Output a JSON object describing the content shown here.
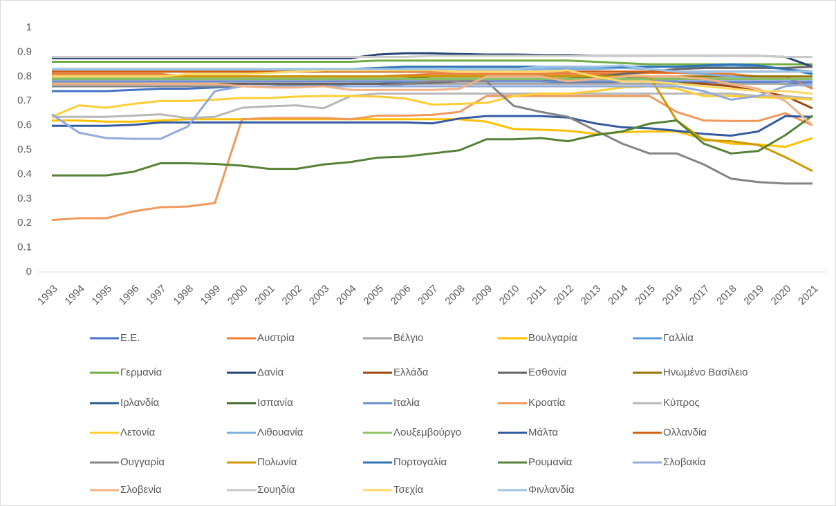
{
  "chart_data": {
    "type": "line",
    "categories": [
      "1993",
      "1994",
      "1995",
      "1996",
      "1997",
      "1998",
      "1999",
      "2000",
      "2001",
      "2002",
      "2003",
      "2004",
      "2005",
      "2006",
      "2007",
      "2008",
      "2009",
      "2010",
      "2011",
      "2012",
      "2013",
      "2014",
      "2015",
      "2016",
      "2017",
      "2018",
      "2019",
      "2020",
      "2021"
    ],
    "ylim": [
      0,
      1
    ],
    "yticks": [
      0,
      0.1,
      0.2,
      0.3,
      0.4,
      0.5,
      0.6,
      0.7,
      0.8,
      0.9,
      1
    ],
    "grid": false,
    "legend": "bottom",
    "series": [
      {
        "name": "Ε.Ε.",
        "color": "#4472C4",
        "values": [
          0.74,
          0.74,
          0.74,
          0.745,
          0.75,
          0.75,
          0.755,
          0.76,
          0.76,
          0.765,
          0.765,
          0.77,
          0.77,
          0.775,
          0.78,
          0.78,
          0.78,
          0.78,
          0.78,
          0.775,
          0.775,
          0.78,
          0.78,
          0.78,
          0.775,
          0.775,
          0.775,
          0.77,
          0.775
        ]
      },
      {
        "name": "Αυστρία",
        "color": "#ED7D31",
        "values": [
          0.81,
          0.81,
          0.81,
          0.81,
          0.81,
          0.8,
          0.8,
          0.8,
          0.8,
          0.8,
          0.8,
          0.8,
          0.8,
          0.805,
          0.81,
          0.81,
          0.81,
          0.81,
          0.81,
          0.81,
          0.81,
          0.81,
          0.815,
          0.815,
          0.81,
          0.81,
          0.8,
          0.8,
          0.75
        ]
      },
      {
        "name": "Βέλγιο",
        "color": "#A5A5A5",
        "values": [
          0.77,
          0.77,
          0.77,
          0.77,
          0.77,
          0.77,
          0.77,
          0.77,
          0.77,
          0.77,
          0.77,
          0.77,
          0.77,
          0.77,
          0.77,
          0.77,
          0.77,
          0.77,
          0.77,
          0.77,
          0.77,
          0.77,
          0.77,
          0.77,
          0.77,
          0.77,
          0.77,
          0.77,
          0.76
        ]
      },
      {
        "name": "Βουλγαρία",
        "color": "#FFC000",
        "values": [
          0.62,
          0.62,
          0.615,
          0.615,
          0.62,
          0.625,
          0.625,
          0.625,
          0.625,
          0.625,
          0.625,
          0.625,
          0.625,
          0.625,
          0.625,
          0.625,
          0.615,
          0.585,
          0.582,
          0.578,
          0.565,
          0.572,
          0.575,
          0.575,
          0.545,
          0.525,
          0.522,
          0.512,
          0.548
        ]
      },
      {
        "name": "Γαλλία",
        "color": "#5B9BD5",
        "values": [
          0.82,
          0.82,
          0.82,
          0.82,
          0.82,
          0.82,
          0.82,
          0.82,
          0.82,
          0.82,
          0.82,
          0.825,
          0.83,
          0.83,
          0.83,
          0.83,
          0.83,
          0.83,
          0.83,
          0.835,
          0.835,
          0.84,
          0.84,
          0.84,
          0.84,
          0.845,
          0.84,
          0.83,
          0.82
        ]
      },
      {
        "name": "Γερμανία",
        "color": "#70AD47",
        "values": [
          0.86,
          0.86,
          0.86,
          0.86,
          0.86,
          0.86,
          0.86,
          0.86,
          0.86,
          0.86,
          0.86,
          0.86,
          0.865,
          0.865,
          0.865,
          0.865,
          0.865,
          0.865,
          0.865,
          0.865,
          0.86,
          0.855,
          0.85,
          0.85,
          0.85,
          0.85,
          0.85,
          0.85,
          0.85
        ]
      },
      {
        "name": "Δανία",
        "color": "#264478",
        "values": [
          0.875,
          0.875,
          0.875,
          0.875,
          0.875,
          0.875,
          0.875,
          0.875,
          0.875,
          0.875,
          0.875,
          0.875,
          0.89,
          0.895,
          0.895,
          0.892,
          0.89,
          0.89,
          0.888,
          0.888,
          0.885,
          0.885,
          0.885,
          0.885,
          0.885,
          0.885,
          0.885,
          0.88,
          0.84
        ]
      },
      {
        "name": "Ελλάδα",
        "color": "#9E480E",
        "values": [
          0.78,
          0.78,
          0.78,
          0.78,
          0.78,
          0.78,
          0.78,
          0.78,
          0.78,
          0.78,
          0.78,
          0.78,
          0.78,
          0.78,
          0.78,
          0.78,
          0.78,
          0.78,
          0.78,
          0.78,
          0.78,
          0.78,
          0.78,
          0.78,
          0.77,
          0.76,
          0.74,
          0.72,
          0.67
        ]
      },
      {
        "name": "Εσθονία",
        "color": "#636363",
        "values": [
          0.77,
          0.77,
          0.77,
          0.77,
          0.77,
          0.77,
          0.77,
          0.77,
          0.77,
          0.77,
          0.77,
          0.77,
          0.77,
          0.77,
          0.775,
          0.78,
          0.78,
          0.78,
          0.78,
          0.79,
          0.8,
          0.81,
          0.82,
          0.83,
          0.835,
          0.835,
          0.835,
          0.835,
          0.84
        ]
      },
      {
        "name": "Ηνωμένο Βασίλειο",
        "color": "#997300",
        "values": [
          0.8,
          0.8,
          0.8,
          0.8,
          0.8,
          0.8,
          0.8,
          0.8,
          0.8,
          0.8,
          0.8,
          0.8,
          0.8,
          0.8,
          0.8,
          0.8,
          0.8,
          0.8,
          0.8,
          0.8,
          0.8,
          0.8,
          0.8,
          0.8,
          0.8,
          0.8,
          0.8,
          0.8,
          0.8
        ]
      },
      {
        "name": "Ιρλανδία",
        "color": "#255E91",
        "values": [
          0.79,
          0.79,
          0.79,
          0.79,
          0.79,
          0.79,
          0.79,
          0.79,
          0.79,
          0.79,
          0.79,
          0.79,
          0.79,
          0.79,
          0.79,
          0.79,
          0.79,
          0.79,
          0.79,
          0.79,
          0.79,
          0.79,
          0.79,
          0.79,
          0.79,
          0.79,
          0.79,
          0.79,
          0.79
        ]
      },
      {
        "name": "Ισπανία",
        "color": "#43682B",
        "values": [
          0.79,
          0.79,
          0.79,
          0.79,
          0.79,
          0.79,
          0.79,
          0.79,
          0.79,
          0.79,
          0.79,
          0.79,
          0.79,
          0.79,
          0.8,
          0.8,
          0.8,
          0.8,
          0.8,
          0.8,
          0.8,
          0.8,
          0.79,
          0.79,
          0.79,
          0.79,
          0.79,
          0.79,
          0.79
        ]
      },
      {
        "name": "Ιταλία",
        "color": "#698ED0",
        "values": [
          0.78,
          0.78,
          0.78,
          0.78,
          0.78,
          0.78,
          0.78,
          0.78,
          0.78,
          0.78,
          0.78,
          0.78,
          0.78,
          0.78,
          0.78,
          0.78,
          0.78,
          0.78,
          0.78,
          0.78,
          0.78,
          0.78,
          0.78,
          0.78,
          0.78,
          0.78,
          0.78,
          0.78,
          0.78
        ]
      },
      {
        "name": "Κροατία",
        "color": "#F1975A",
        "values": [
          0.213,
          0.22,
          0.22,
          0.248,
          0.265,
          0.268,
          0.282,
          0.625,
          0.63,
          0.63,
          0.63,
          0.625,
          0.64,
          0.64,
          0.643,
          0.655,
          0.72,
          0.72,
          0.72,
          0.72,
          0.72,
          0.72,
          0.72,
          0.655,
          0.62,
          0.618,
          0.618,
          0.65,
          0.6
        ]
      },
      {
        "name": "Κύπρος",
        "color": "#B7B7B7",
        "values": [
          0.635,
          0.635,
          0.635,
          0.64,
          0.645,
          0.63,
          0.635,
          0.672,
          0.678,
          0.682,
          0.67,
          0.72,
          0.73,
          0.73,
          0.73,
          0.73,
          0.73,
          0.73,
          0.73,
          0.73,
          0.73,
          0.73,
          0.73,
          0.73,
          0.73,
          0.73,
          0.72,
          0.72,
          0.71
        ]
      },
      {
        "name": "Λετονία",
        "color": "#FFCD33",
        "values": [
          0.635,
          0.682,
          0.672,
          0.688,
          0.7,
          0.7,
          0.705,
          0.712,
          0.712,
          0.718,
          0.72,
          0.72,
          0.718,
          0.71,
          0.685,
          0.688,
          0.692,
          0.72,
          0.73,
          0.73,
          0.74,
          0.755,
          0.76,
          0.75,
          0.72,
          0.72,
          0.715,
          0.712,
          0.705
        ]
      },
      {
        "name": "Λιθουανία",
        "color": "#7CAFDD",
        "values": [
          0.83,
          0.83,
          0.83,
          0.83,
          0.83,
          0.83,
          0.83,
          0.83,
          0.83,
          0.83,
          0.83,
          0.83,
          0.83,
          0.83,
          0.83,
          0.83,
          0.83,
          0.83,
          0.83,
          0.83,
          0.83,
          0.835,
          0.83,
          0.82,
          0.81,
          0.8,
          0.79,
          0.79,
          0.79
        ]
      },
      {
        "name": "Λουξεμβούργο",
        "color": "#8CC168",
        "values": [
          0.79,
          0.79,
          0.79,
          0.79,
          0.79,
          0.79,
          0.79,
          0.79,
          0.79,
          0.79,
          0.79,
          0.79,
          0.79,
          0.79,
          0.79,
          0.79,
          0.79,
          0.79,
          0.79,
          0.79,
          0.79,
          0.79,
          0.79,
          0.79,
          0.79,
          0.79,
          0.79,
          0.79,
          0.79
        ]
      },
      {
        "name": "Μάλτα",
        "color": "#335AA1",
        "values": [
          0.598,
          0.598,
          0.598,
          0.602,
          0.612,
          0.612,
          0.612,
          0.612,
          0.612,
          0.612,
          0.612,
          0.612,
          0.612,
          0.612,
          0.608,
          0.628,
          0.638,
          0.638,
          0.638,
          0.632,
          0.608,
          0.592,
          0.588,
          0.578,
          0.565,
          0.558,
          0.575,
          0.638,
          0.635
        ]
      },
      {
        "name": "Ολλανδία",
        "color": "#D26012",
        "values": [
          0.82,
          0.82,
          0.82,
          0.82,
          0.82,
          0.82,
          0.82,
          0.82,
          0.82,
          0.82,
          0.82,
          0.82,
          0.82,
          0.82,
          0.82,
          0.82,
          0.82,
          0.82,
          0.82,
          0.82,
          0.82,
          0.82,
          0.82,
          0.82,
          0.82,
          0.82,
          0.82,
          0.82,
          0.82
        ]
      },
      {
        "name": "Ουγγαρία",
        "color": "#848484",
        "values": [
          0.76,
          0.76,
          0.76,
          0.76,
          0.76,
          0.76,
          0.76,
          0.76,
          0.76,
          0.76,
          0.76,
          0.76,
          0.76,
          0.77,
          0.78,
          0.78,
          0.78,
          0.68,
          0.655,
          0.635,
          0.58,
          0.525,
          0.485,
          0.485,
          0.44,
          0.382,
          0.368,
          0.362,
          0.362
        ]
      },
      {
        "name": "Πολωνία",
        "color": "#CC9A00",
        "values": [
          0.8,
          0.8,
          0.8,
          0.8,
          0.8,
          0.8,
          0.8,
          0.8,
          0.8,
          0.8,
          0.8,
          0.8,
          0.8,
          0.8,
          0.8,
          0.8,
          0.8,
          0.8,
          0.8,
          0.8,
          0.8,
          0.8,
          0.8,
          0.62,
          0.54,
          0.535,
          0.52,
          0.47,
          0.413
        ]
      },
      {
        "name": "Πορτογαλία",
        "color": "#2E75B6",
        "values": [
          0.83,
          0.83,
          0.83,
          0.83,
          0.83,
          0.83,
          0.83,
          0.83,
          0.83,
          0.83,
          0.83,
          0.83,
          0.835,
          0.84,
          0.84,
          0.84,
          0.84,
          0.84,
          0.84,
          0.84,
          0.84,
          0.84,
          0.84,
          0.84,
          0.845,
          0.85,
          0.845,
          0.83,
          0.81
        ]
      },
      {
        "name": "Ρουμανία",
        "color": "#548235",
        "values": [
          0.395,
          0.395,
          0.395,
          0.41,
          0.445,
          0.445,
          0.442,
          0.435,
          0.422,
          0.422,
          0.44,
          0.45,
          0.468,
          0.472,
          0.485,
          0.498,
          0.543,
          0.543,
          0.548,
          0.535,
          0.56,
          0.575,
          0.607,
          0.62,
          0.525,
          0.485,
          0.495,
          0.56,
          0.64
        ]
      },
      {
        "name": "Σλοβακία",
        "color": "#8FAADC",
        "values": [
          0.645,
          0.57,
          0.548,
          0.545,
          0.545,
          0.595,
          0.74,
          0.76,
          0.76,
          0.76,
          0.76,
          0.76,
          0.76,
          0.76,
          0.76,
          0.76,
          0.76,
          0.76,
          0.76,
          0.76,
          0.76,
          0.76,
          0.76,
          0.76,
          0.74,
          0.705,
          0.72,
          0.76,
          0.77
        ]
      },
      {
        "name": "Σλοβενία",
        "color": "#F4B183",
        "values": [
          0.77,
          0.77,
          0.77,
          0.77,
          0.77,
          0.77,
          0.77,
          0.76,
          0.755,
          0.755,
          0.76,
          0.745,
          0.745,
          0.745,
          0.745,
          0.75,
          0.8,
          0.8,
          0.8,
          0.78,
          0.79,
          0.8,
          0.8,
          0.8,
          0.79,
          0.77,
          0.75,
          0.7,
          0.6
        ]
      },
      {
        "name": "Σουηδία",
        "color": "#C9C9C9",
        "values": [
          0.88,
          0.88,
          0.88,
          0.88,
          0.88,
          0.88,
          0.88,
          0.88,
          0.88,
          0.88,
          0.88,
          0.88,
          0.88,
          0.88,
          0.885,
          0.885,
          0.885,
          0.885,
          0.885,
          0.885,
          0.885,
          0.885,
          0.885,
          0.885,
          0.885,
          0.885,
          0.885,
          0.88,
          0.88
        ]
      },
      {
        "name": "Τσεχία",
        "color": "#FFD966",
        "values": [
          0.8,
          0.8,
          0.8,
          0.8,
          0.8,
          0.81,
          0.81,
          0.81,
          0.815,
          0.82,
          0.825,
          0.825,
          0.825,
          0.825,
          0.825,
          0.82,
          0.82,
          0.82,
          0.82,
          0.825,
          0.8,
          0.78,
          0.78,
          0.77,
          0.76,
          0.75,
          0.74,
          0.74,
          0.73
        ]
      },
      {
        "name": "Φινλανδία",
        "color": "#9DC3E6",
        "values": [
          0.83,
          0.83,
          0.83,
          0.83,
          0.83,
          0.83,
          0.83,
          0.83,
          0.83,
          0.83,
          0.83,
          0.83,
          0.83,
          0.83,
          0.83,
          0.83,
          0.83,
          0.83,
          0.84,
          0.84,
          0.84,
          0.845,
          0.83,
          0.82,
          0.82,
          0.82,
          0.82,
          0.82,
          0.82
        ]
      }
    ]
  }
}
